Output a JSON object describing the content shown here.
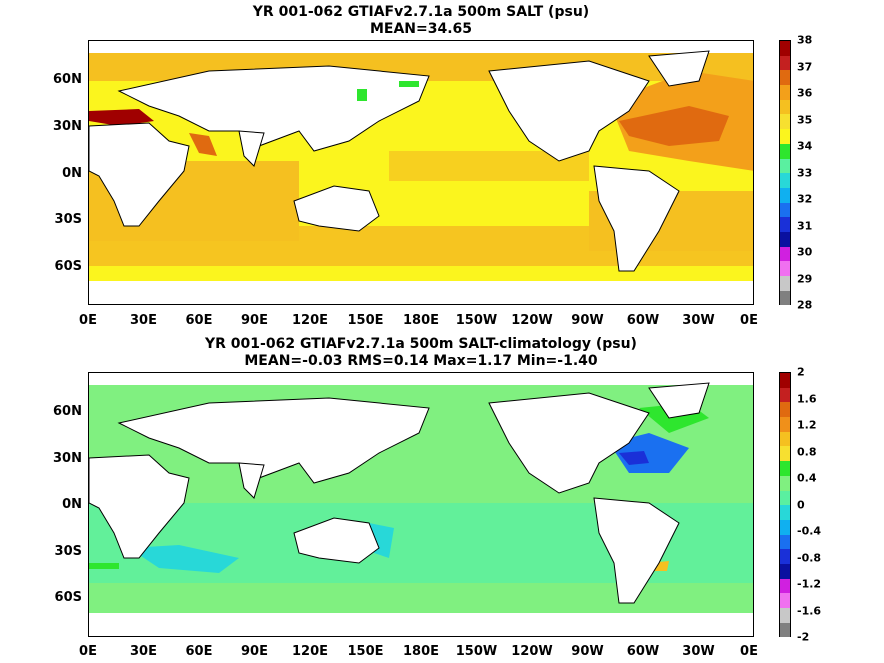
{
  "top_panel": {
    "title_line1": "YR 001-062 GTIAFv2.7.1a 500m SALT (psu)",
    "title_line2": "MEAN=34.65",
    "colorbar_labels": [
      "38",
      "37",
      "36",
      "35",
      "34",
      "33",
      "32",
      "31",
      "30",
      "29",
      "28"
    ],
    "colorbar_colors": [
      "#a00000",
      "#c42020",
      "#e06a10",
      "#f3a01a",
      "#f5c020",
      "#f7e030",
      "#fbf51e",
      "#2ee62e",
      "#5af0a0",
      "#28d8d8",
      "#10b0f0",
      "#1a70f0",
      "#1a30d8",
      "#0a10a0",
      "#d020e0",
      "#f070f0",
      "#c8c8c8",
      "#808080"
    ]
  },
  "bottom_panel": {
    "title_line1": "YR 001-062 GTIAFv2.7.1a 500m SALT-climatology (psu)",
    "title_line2": "MEAN=-0.03   RMS=0.14   Max=1.17   Min=-1.40",
    "colorbar_labels": [
      "2",
      "1.6",
      "1.2",
      "0.8",
      "0.4",
      "0",
      "-0.4",
      "-0.8",
      "-1.2",
      "-1.6",
      "-2"
    ],
    "colorbar_colors": [
      "#a00000",
      "#c42020",
      "#e06a10",
      "#f0901a",
      "#f5c020",
      "#f7e030",
      "#2ee62e",
      "#80f080",
      "#5af0a0",
      "#28d8d8",
      "#10b0f0",
      "#1a70f0",
      "#1a30d8",
      "#0a10a0",
      "#d020e0",
      "#f070f0",
      "#c8c8c8",
      "#808080"
    ]
  },
  "lat_labels": [
    "60N",
    "30N",
    "0N",
    "30S",
    "60S"
  ],
  "lon_labels": [
    "0E",
    "30E",
    "60E",
    "90E",
    "120E",
    "150E",
    "180E",
    "150W",
    "120W",
    "90W",
    "60W",
    "30W",
    "0E"
  ]
}
